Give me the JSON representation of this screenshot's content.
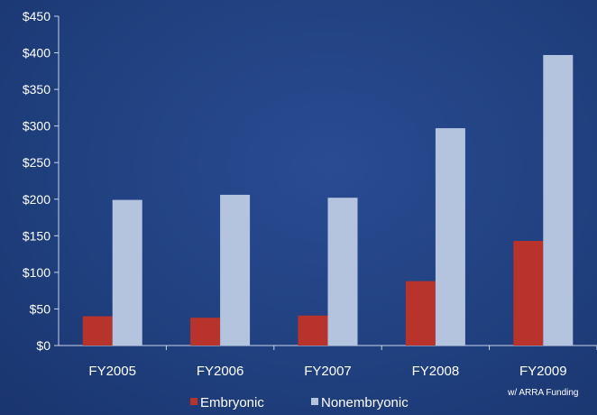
{
  "chart_data": {
    "type": "bar",
    "categories": [
      "FY2005",
      "FY2006",
      "FY2007",
      "FY2008",
      "FY2009"
    ],
    "category_sublabels": [
      "",
      "",
      "",
      "",
      "w/ ARRA Funding"
    ],
    "series": [
      {
        "name": "Embryonic",
        "values": [
          40,
          38,
          41,
          88,
          143
        ],
        "color": "#b8332c"
      },
      {
        "name": "Nonembryonic",
        "values": [
          199,
          206,
          202,
          297,
          397
        ],
        "color": "#b4c4df"
      }
    ],
    "ylim": [
      0,
      450
    ],
    "y_ticks": [
      0,
      50,
      100,
      150,
      200,
      250,
      300,
      350,
      400,
      450
    ],
    "y_tick_prefix": "$",
    "grid": false,
    "legend_position": "bottom-center"
  }
}
